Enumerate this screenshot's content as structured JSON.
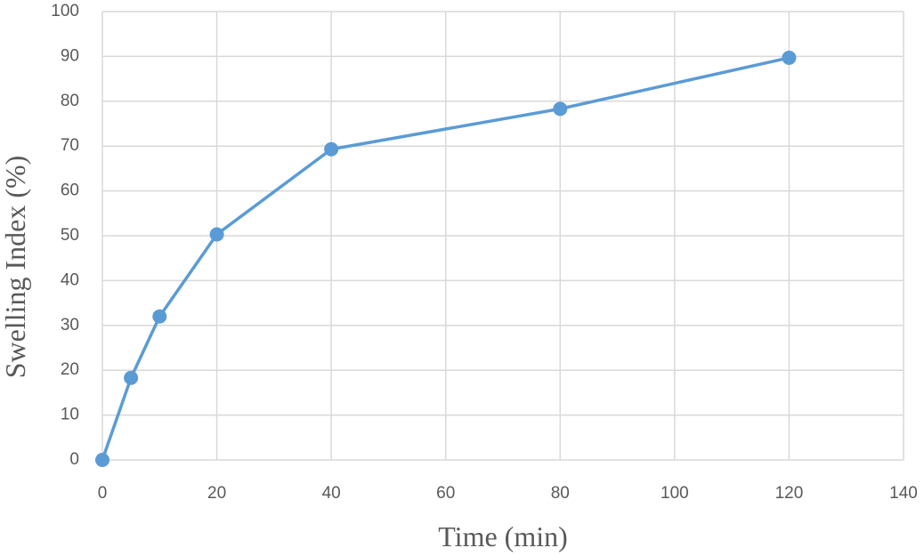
{
  "chart_data": {
    "type": "line",
    "x_label": "Time (min)",
    "y_label": "Swelling Index (%)",
    "x": [
      0,
      5,
      10,
      20,
      40,
      80,
      120
    ],
    "series": [
      {
        "color": "#5b9bd5",
        "values": [
          0,
          18.3,
          32,
          50.3,
          69.3,
          78.3,
          89.7
        ]
      }
    ],
    "xlim": [
      0,
      140
    ],
    "xticks": [
      0,
      20,
      40,
      60,
      80,
      100,
      120,
      140
    ],
    "ylim": [
      0,
      100
    ],
    "yticks": [
      0,
      10,
      20,
      30,
      40,
      50,
      60,
      70,
      80,
      90,
      100
    ],
    "grid": true
  }
}
